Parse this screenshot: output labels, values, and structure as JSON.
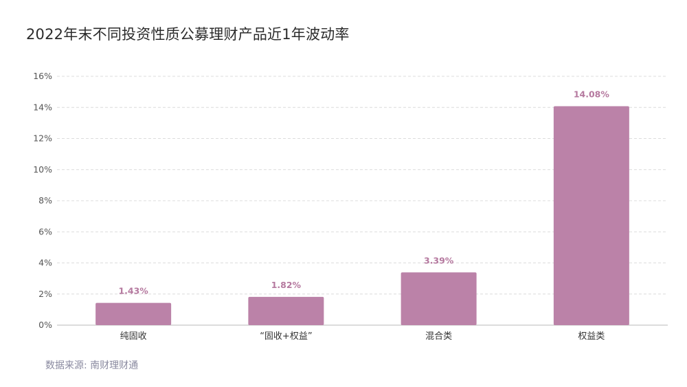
{
  "colors": {
    "bar": "#bb82a8",
    "data_label": "#b5799f",
    "grid": "#dcdcdc",
    "axis": "#b8b8b8"
  },
  "chart_data": {
    "type": "bar",
    "title": "2022年末不同投资性质公募理财产品近1年波动率",
    "categories": [
      "纯固收",
      "“固收+权益”",
      "混合类",
      "权益类"
    ],
    "values": [
      1.43,
      1.82,
      3.39,
      14.08
    ],
    "data_labels": [
      "1.43%",
      "1.82%",
      "3.39%",
      "14.08%"
    ],
    "ylim": [
      0,
      16
    ],
    "yticks": [
      0,
      2,
      4,
      6,
      8,
      10,
      12,
      14,
      16
    ],
    "ytick_labels": [
      "0%",
      "2%",
      "4%",
      "6%",
      "8%",
      "10%",
      "12%",
      "14%",
      "16%"
    ],
    "xlabel": "",
    "ylabel": "",
    "grid": true,
    "legend": false
  },
  "source": "数据来源: 南财理财通"
}
